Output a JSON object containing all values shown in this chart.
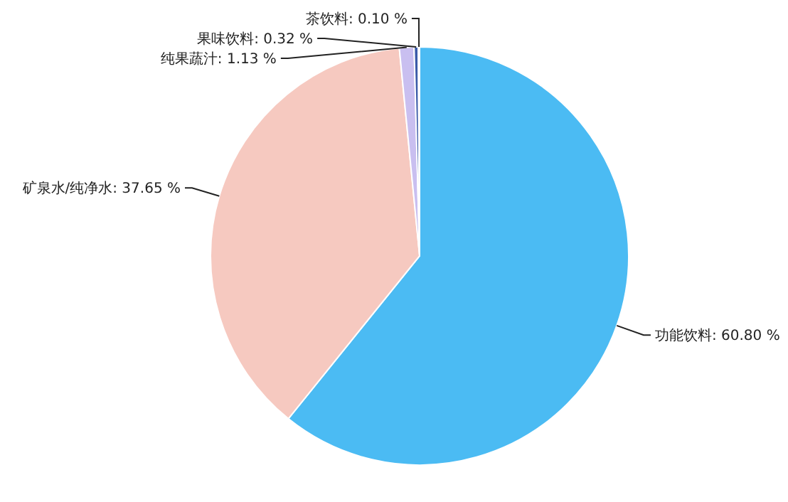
{
  "chart_data": {
    "type": "pie",
    "categories": [
      "功能饮料",
      "矿泉水/纯净水",
      "纯果蔬汁",
      "果味饮料",
      "茶饮料"
    ],
    "values": [
      60.8,
      37.65,
      1.13,
      0.32,
      0.1
    ],
    "value_labels": [
      "60.80 %",
      "37.65 %",
      "1.13 %",
      "0.32 %",
      "0.10 %"
    ],
    "colors": [
      "#4bbbf3",
      "#f6c9c0",
      "#c9bff0",
      "#3a5aa8",
      "#e6e0f6"
    ]
  }
}
